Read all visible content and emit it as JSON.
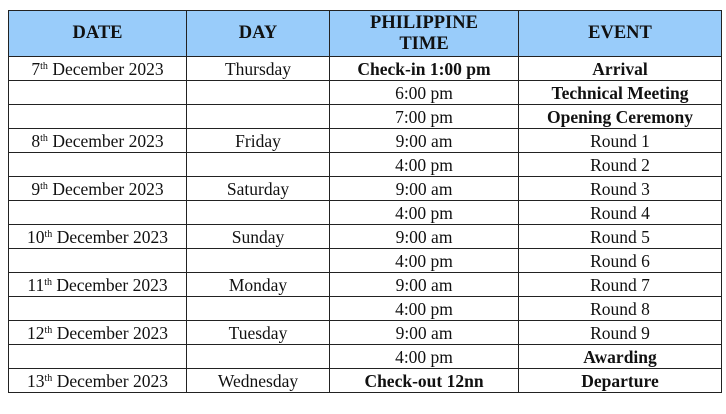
{
  "table": {
    "headers": [
      "DATE",
      "DAY",
      "PHILIPPINE TIME",
      "EVENT"
    ],
    "header_bg": "#99ccfa",
    "rows": [
      {
        "day_num": "7",
        "suffix": "th",
        "month_year": " December 2023",
        "day": "Thursday",
        "time": "Check-in 1:00 pm",
        "time_bold": true,
        "event": "Arrival",
        "event_bold": true
      },
      {
        "day_num": "",
        "suffix": "",
        "month_year": "",
        "day": "",
        "time": "6:00 pm",
        "time_bold": false,
        "event": "Technical Meeting",
        "event_bold": true
      },
      {
        "day_num": "",
        "suffix": "",
        "month_year": "",
        "day": "",
        "time": "7:00 pm",
        "time_bold": false,
        "event": "Opening Ceremony",
        "event_bold": true
      },
      {
        "day_num": "8",
        "suffix": "th",
        "month_year": " December 2023",
        "day": "Friday",
        "time": "9:00 am",
        "time_bold": false,
        "event": "Round 1",
        "event_bold": false
      },
      {
        "day_num": "",
        "suffix": "",
        "month_year": "",
        "day": "",
        "time": "4:00 pm",
        "time_bold": false,
        "event": "Round 2",
        "event_bold": false
      },
      {
        "day_num": "9",
        "suffix": "th",
        "month_year": " December 2023",
        "day": "Saturday",
        "time": "9:00 am",
        "time_bold": false,
        "event": "Round 3",
        "event_bold": false
      },
      {
        "day_num": "",
        "suffix": "",
        "month_year": "",
        "day": "",
        "time": "4:00 pm",
        "time_bold": false,
        "event": "Round 4",
        "event_bold": false
      },
      {
        "day_num": "10",
        "suffix": "th",
        "month_year": " December 2023",
        "day": "Sunday",
        "time": "9:00 am",
        "time_bold": false,
        "event": "Round 5",
        "event_bold": false
      },
      {
        "day_num": "",
        "suffix": "",
        "month_year": "",
        "day": "",
        "time": "4:00 pm",
        "time_bold": false,
        "event": "Round 6",
        "event_bold": false
      },
      {
        "day_num": "11",
        "suffix": "th",
        "month_year": " December 2023",
        "day": "Monday",
        "time": "9:00 am",
        "time_bold": false,
        "event": "Round 7",
        "event_bold": false
      },
      {
        "day_num": "",
        "suffix": "",
        "month_year": "",
        "day": "",
        "time": "4:00 pm",
        "time_bold": false,
        "event": "Round 8",
        "event_bold": false
      },
      {
        "day_num": "12",
        "suffix": "th",
        "month_year": " December 2023",
        "day": "Tuesday",
        "time": "9:00 am",
        "time_bold": false,
        "event": "Round 9",
        "event_bold": false
      },
      {
        "day_num": "",
        "suffix": "",
        "month_year": "",
        "day": "",
        "time": "4:00 pm",
        "time_bold": false,
        "event": "Awarding",
        "event_bold": true
      },
      {
        "day_num": "13",
        "suffix": "th",
        "month_year": " December 2023",
        "day": "Wednesday",
        "time": "Check-out 12nn",
        "time_bold": true,
        "event": "Departure",
        "event_bold": true
      }
    ]
  }
}
